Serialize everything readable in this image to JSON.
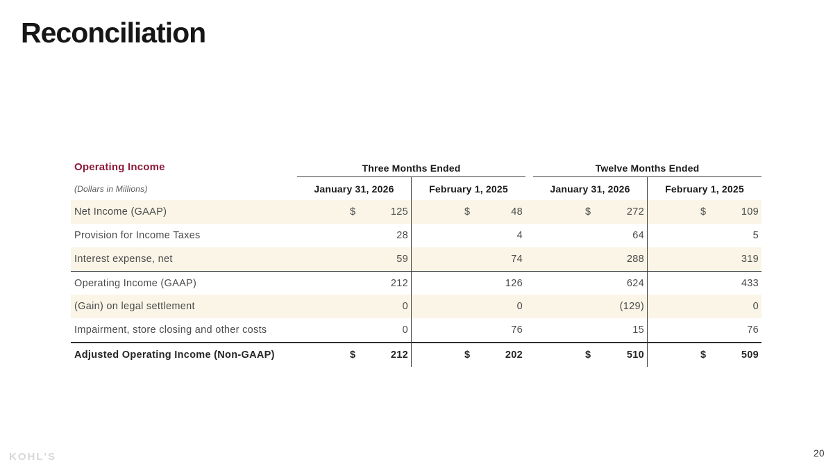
{
  "slide": {
    "title": "Reconciliation",
    "page_number": "20",
    "footer_logo": "KOHL'S"
  },
  "table": {
    "section_title": "Operating Income",
    "units_note": "(Dollars in Millions)",
    "currency_symbol": "$",
    "groups": [
      {
        "label": "Three Months Ended"
      },
      {
        "label": "Twelve Months Ended"
      }
    ],
    "columns": [
      "January 31, 2026",
      "February 1, 2025",
      "January 31, 2026",
      "February 1, 2025"
    ],
    "rows": [
      {
        "label": "Net Income (GAAP)",
        "values": [
          "125",
          "48",
          "272",
          "109"
        ]
      },
      {
        "label": "Provision for Income Taxes",
        "values": [
          "28",
          "4",
          "64",
          "5"
        ]
      },
      {
        "label": "Interest expense, net",
        "values": [
          "59",
          "74",
          "288",
          "319"
        ]
      },
      {
        "label": "Operating Income (GAAP)",
        "values": [
          "212",
          "126",
          "624",
          "433"
        ]
      },
      {
        "label": "(Gain) on legal settlement",
        "values": [
          "0",
          "0",
          "(129)",
          "0"
        ]
      },
      {
        "label": "Impairment, store closing and other costs",
        "values": [
          "0",
          "76",
          "15",
          "76"
        ]
      },
      {
        "label": "Adjusted Operating Income (Non-GAAP)",
        "values": [
          "212",
          "202",
          "510",
          "509"
        ]
      }
    ]
  },
  "colors": {
    "accent_maroon": "#8e1b3c",
    "row_stripe": "#faf5e7",
    "rule_dark": "#3e3e3e",
    "logo_gray": "#d7d7d7"
  }
}
